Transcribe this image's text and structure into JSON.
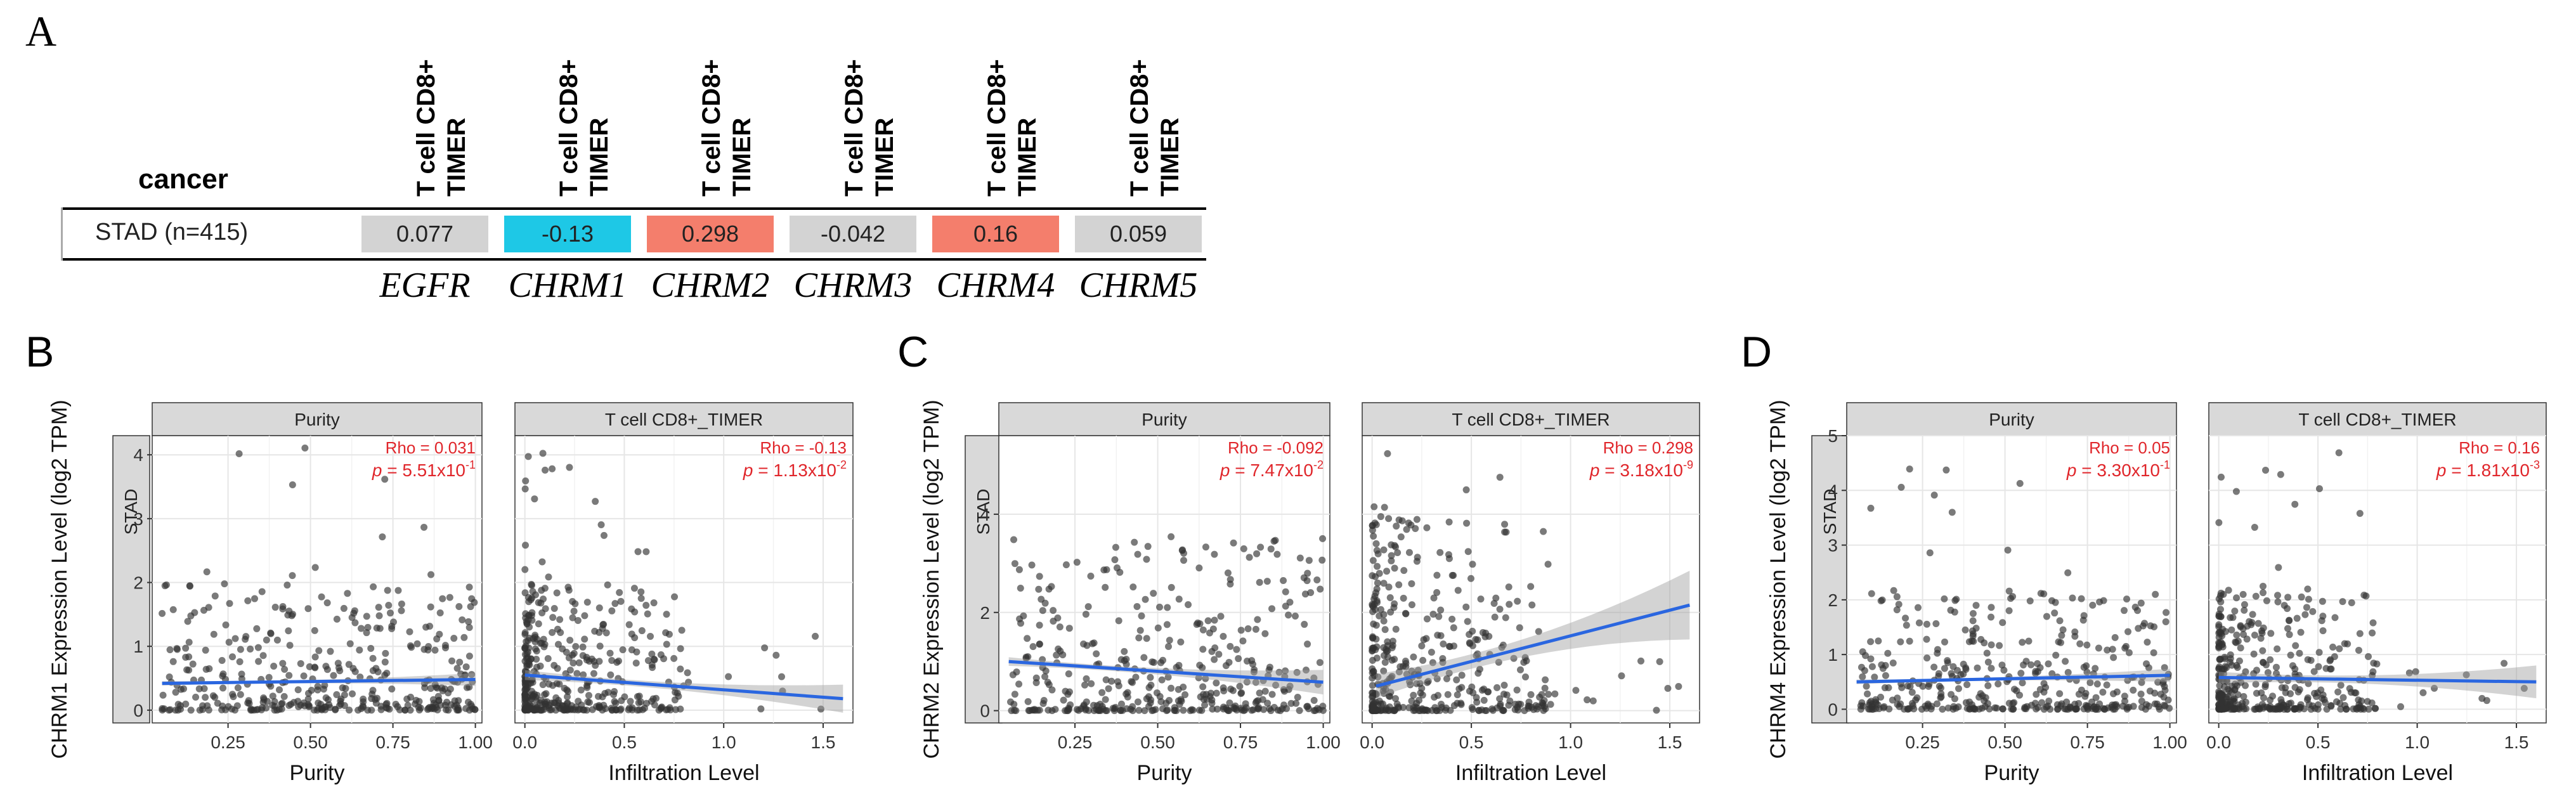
{
  "heatmap": {
    "letter": "A",
    "row_header": "cancer",
    "col_header_line1": "T cell CD8+",
    "col_header_line2": "TIMER",
    "row_label": "STAD (n=415)",
    "cells": [
      {
        "gene": "EGFR",
        "value": "0.077",
        "color": "#d3d3d3"
      },
      {
        "gene": "CHRM1",
        "value": "-0.13",
        "color": "#1ec8e6"
      },
      {
        "gene": "CHRM2",
        "value": "0.298",
        "color": "#f47e6c"
      },
      {
        "gene": "CHRM3",
        "value": "-0.042",
        "color": "#d3d3d3"
      },
      {
        "gene": "CHRM4",
        "value": "0.16",
        "color": "#f47e6c"
      },
      {
        "gene": "CHRM5",
        "value": "0.059",
        "color": "#d3d3d3"
      }
    ]
  },
  "chart_data": [
    {
      "type": "scatter",
      "letter": "B",
      "ylabel": "CHRM1 Expression Level (log2 TPM)",
      "strip": "STAD",
      "ylim": [
        -0.2,
        4.3
      ],
      "yticks": [
        0,
        1,
        2,
        3,
        4
      ],
      "facets": [
        {
          "title": "Purity",
          "xlabel": "Purity",
          "xlim": [
            0.02,
            1.02
          ],
          "xticks": [
            "0.25",
            "0.50",
            "0.75",
            "1.00"
          ],
          "xtick_values": [
            0.25,
            0.5,
            0.75,
            1.0
          ],
          "rho": "Rho = 0.031",
          "p": "p = 5.51x10",
          "p_exp": "-1",
          "fit": {
            "x0": 0.05,
            "y0": 0.42,
            "x1": 1.0,
            "y1": 0.48,
            "band": 0.1
          },
          "points": {
            "seed": 11,
            "n": 400,
            "xmin": 0.05,
            "xmax": 1.0,
            "ybase": 0.0,
            "yscale": 0.9,
            "ymax": 4.2
          }
        },
        {
          "title": "T cell CD8+_TIMER",
          "xlabel": "Infiltration Level",
          "xlim": [
            -0.05,
            1.65
          ],
          "xticks": [
            "0.0",
            "0.5",
            "1.0",
            "1.5"
          ],
          "xtick_values": [
            0.0,
            0.5,
            1.0,
            1.5
          ],
          "rho": "Rho = -0.13",
          "p": "p = 1.13x10",
          "p_exp": "-2",
          "fit": {
            "x0": 0.0,
            "y0": 0.55,
            "x1": 1.6,
            "y1": 0.18,
            "band": 0.22
          },
          "points": {
            "seed": 12,
            "n": 400,
            "xmin": 0.0,
            "xmax": 0.8,
            "ybase": 0.0,
            "yscale": 0.9,
            "ymax": 4.2,
            "xskew": 2.2
          }
        }
      ]
    },
    {
      "type": "scatter",
      "letter": "C",
      "ylabel": "CHRM2 Expression Level (log2 TPM)",
      "strip": "STAD",
      "ylim": [
        -0.25,
        5.6
      ],
      "yticks": [
        0,
        2,
        4
      ],
      "facets": [
        {
          "title": "Purity",
          "xlabel": "Purity",
          "xlim": [
            0.02,
            1.02
          ],
          "xticks": [
            "0.25",
            "0.50",
            "0.75",
            "1.00"
          ],
          "xtick_values": [
            0.25,
            0.5,
            0.75,
            1.0
          ],
          "rho": "Rho = -0.092",
          "p": "p = 7.47x10",
          "p_exp": "-2",
          "fit": {
            "x0": 0.05,
            "y0": 1.0,
            "x1": 1.0,
            "y1": 0.58,
            "band": 0.25
          },
          "points": {
            "seed": 21,
            "n": 400,
            "xmin": 0.05,
            "xmax": 1.0,
            "ybase": 0.0,
            "yscale": 1.6,
            "ymax": 5.1
          }
        },
        {
          "title": "T cell CD8+_TIMER",
          "xlabel": "Infiltration Level",
          "xlim": [
            -0.05,
            1.65
          ],
          "xticks": [
            "0.0",
            "0.5",
            "1.0",
            "1.5"
          ],
          "xtick_values": [
            0.0,
            0.5,
            1.0,
            1.5
          ],
          "rho": "Rho = 0.298",
          "p": "p = 3.18x10",
          "p_exp": "-9",
          "fit": {
            "x0": 0.02,
            "y0": 0.5,
            "x1": 1.6,
            "y1": 2.15,
            "band": 0.7
          },
          "points": {
            "seed": 22,
            "n": 400,
            "xmin": 0.0,
            "xmax": 0.9,
            "ybase": 0.0,
            "yscale": 1.8,
            "ymax": 5.4,
            "xskew": 2.0
          }
        }
      ]
    },
    {
      "type": "scatter",
      "letter": "D",
      "ylabel": "CHRM4 Expression Level (log2 TPM)",
      "strip": "STAD",
      "ylim": [
        -0.25,
        5.0
      ],
      "yticks": [
        0,
        1,
        2,
        3,
        4,
        5
      ],
      "facets": [
        {
          "title": "Purity",
          "xlabel": "Purity",
          "xlim": [
            0.02,
            1.02
          ],
          "xticks": [
            "0.25",
            "0.50",
            "0.75",
            "1.00"
          ],
          "xtick_values": [
            0.25,
            0.5,
            0.75,
            1.0
          ],
          "rho": "Rho = 0.05",
          "p": "p = 3.30x10",
          "p_exp": "-1",
          "fit": {
            "x0": 0.05,
            "y0": 0.5,
            "x1": 1.0,
            "y1": 0.62,
            "band": 0.12
          },
          "points": {
            "seed": 31,
            "n": 400,
            "xmin": 0.05,
            "xmax": 1.0,
            "ybase": 0.0,
            "yscale": 1.0,
            "ymax": 4.8
          }
        },
        {
          "title": "T cell CD8+_TIMER",
          "xlabel": "Infiltration Level",
          "xlim": [
            -0.05,
            1.65
          ],
          "xticks": [
            "0.0",
            "0.5",
            "1.0",
            "1.5"
          ],
          "xtick_values": [
            0.0,
            0.5,
            1.0,
            1.5
          ],
          "rho": "Rho = 0.16",
          "p": "p = 1.81x10",
          "p_exp": "-3",
          "fit": {
            "x0": 0.0,
            "y0": 0.58,
            "x1": 1.6,
            "y1": 0.5,
            "band": 0.3
          },
          "points": {
            "seed": 32,
            "n": 400,
            "xmin": 0.0,
            "xmax": 0.8,
            "ybase": 0.0,
            "yscale": 1.0,
            "ymax": 4.8,
            "xskew": 2.2
          }
        }
      ]
    }
  ]
}
